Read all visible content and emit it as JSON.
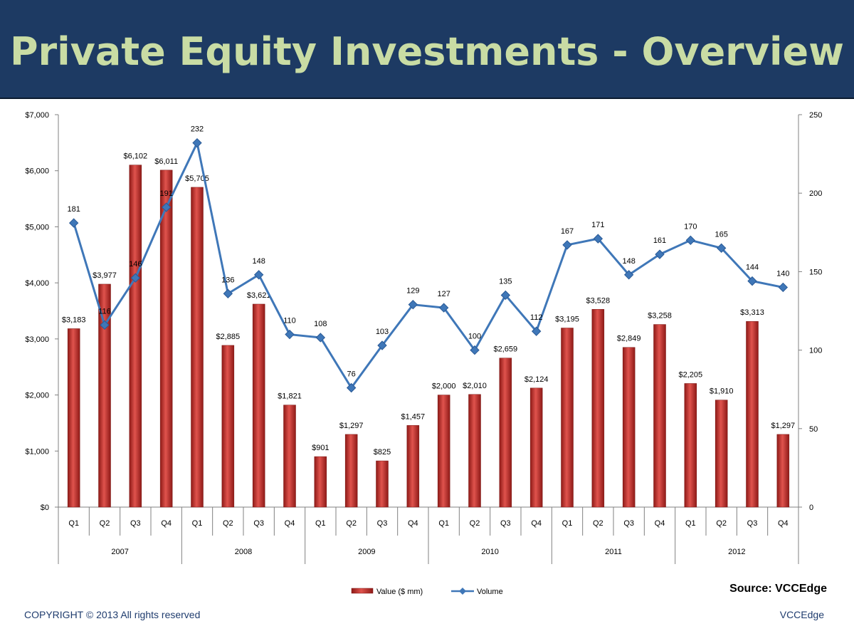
{
  "header": {
    "title": "Private Equity Investments - Overview"
  },
  "footer": {
    "source": "Source: VCCEdge",
    "copyright": "COPYRIGHT © 2013 All rights reserved",
    "brand": "VCCEdge"
  },
  "colors": {
    "header_bg": "#1d3a63",
    "title": "#c9dca4",
    "bar": "#c0302c",
    "line": "#3f77b8",
    "footer_text": "#1f3c6e"
  },
  "chart_data": {
    "type": "bar",
    "categories": [
      "Q1",
      "Q2",
      "Q3",
      "Q4",
      "Q1",
      "Q2",
      "Q3",
      "Q4",
      "Q1",
      "Q2",
      "Q3",
      "Q4",
      "Q1",
      "Q2",
      "Q3",
      "Q4",
      "Q1",
      "Q2",
      "Q3",
      "Q4",
      "Q1",
      "Q2",
      "Q3",
      "Q4"
    ],
    "groups": [
      "2007",
      "2008",
      "2009",
      "2010",
      "2011",
      "2012"
    ],
    "series": [
      {
        "name": "Value ($ mm)",
        "type": "bar",
        "axis": "left",
        "values": [
          3183,
          3977,
          6102,
          6011,
          5705,
          2885,
          3621,
          1821,
          901,
          1297,
          825,
          1457,
          2000,
          2010,
          2659,
          2124,
          3195,
          3528,
          2849,
          3258,
          2205,
          1910,
          3313,
          1297
        ],
        "labels": [
          "$3,183",
          "$3,977",
          "$6,102",
          "$6,011",
          "$5,705",
          "$2,885",
          "$3,621",
          "$1,821",
          "$901",
          "$1,297",
          "$825",
          "$1,457",
          "$2,000",
          "$2,010",
          "$2,659",
          "$2,124",
          "$3,195",
          "$3,528",
          "$2,849",
          "$3,258",
          "$2,205",
          "$1,910",
          "$3,313",
          "$1,297"
        ]
      },
      {
        "name": "Volume",
        "type": "line",
        "axis": "right",
        "values": [
          181,
          116,
          146,
          191,
          232,
          136,
          148,
          110,
          108,
          76,
          103,
          129,
          127,
          100,
          135,
          112,
          167,
          171,
          148,
          161,
          170,
          165,
          144,
          140
        ]
      }
    ],
    "y_left": {
      "min": 0,
      "max": 7000,
      "ticks": [
        "$0",
        "$1,000",
        "$2,000",
        "$3,000",
        "$4,000",
        "$5,000",
        "$6,000",
        "$7,000"
      ]
    },
    "y_right": {
      "min": 0,
      "max": 250,
      "ticks": [
        "0",
        "50",
        "100",
        "150",
        "200",
        "250"
      ]
    },
    "legend": {
      "position": "bottom",
      "items": [
        "Value ($ mm)",
        "Volume"
      ]
    },
    "grid": false
  }
}
